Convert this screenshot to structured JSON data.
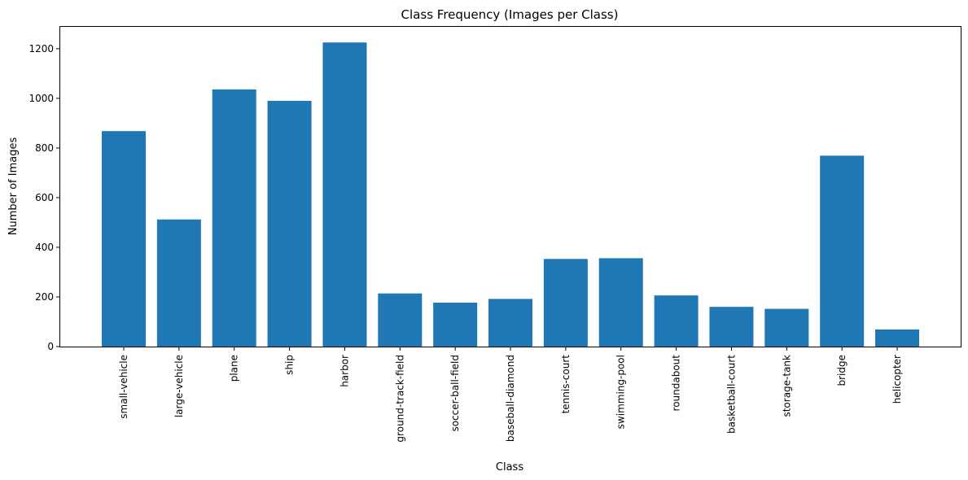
{
  "chart_data": {
    "type": "bar",
    "title": "Class Frequency (Images per Class)",
    "xlabel": "Class",
    "ylabel": "Number of Images",
    "categories": [
      "small-vehicle",
      "large-vehicle",
      "plane",
      "ship",
      "harbor",
      "ground-track-field",
      "soccer-ball-field",
      "baseball-diamond",
      "tennis-court",
      "swimming-pool",
      "roundabout",
      "basketball-court",
      "storage-tank",
      "bridge",
      "helicopter"
    ],
    "values": [
      868,
      512,
      1036,
      990,
      1225,
      214,
      177,
      192,
      353,
      356,
      206,
      160,
      152,
      769,
      69
    ],
    "ylim": [
      0,
      1288
    ],
    "yticks": [
      0,
      200,
      400,
      600,
      800,
      1000,
      1200
    ],
    "bar_color": "#1f77b4",
    "grid": false,
    "legend": "none"
  }
}
